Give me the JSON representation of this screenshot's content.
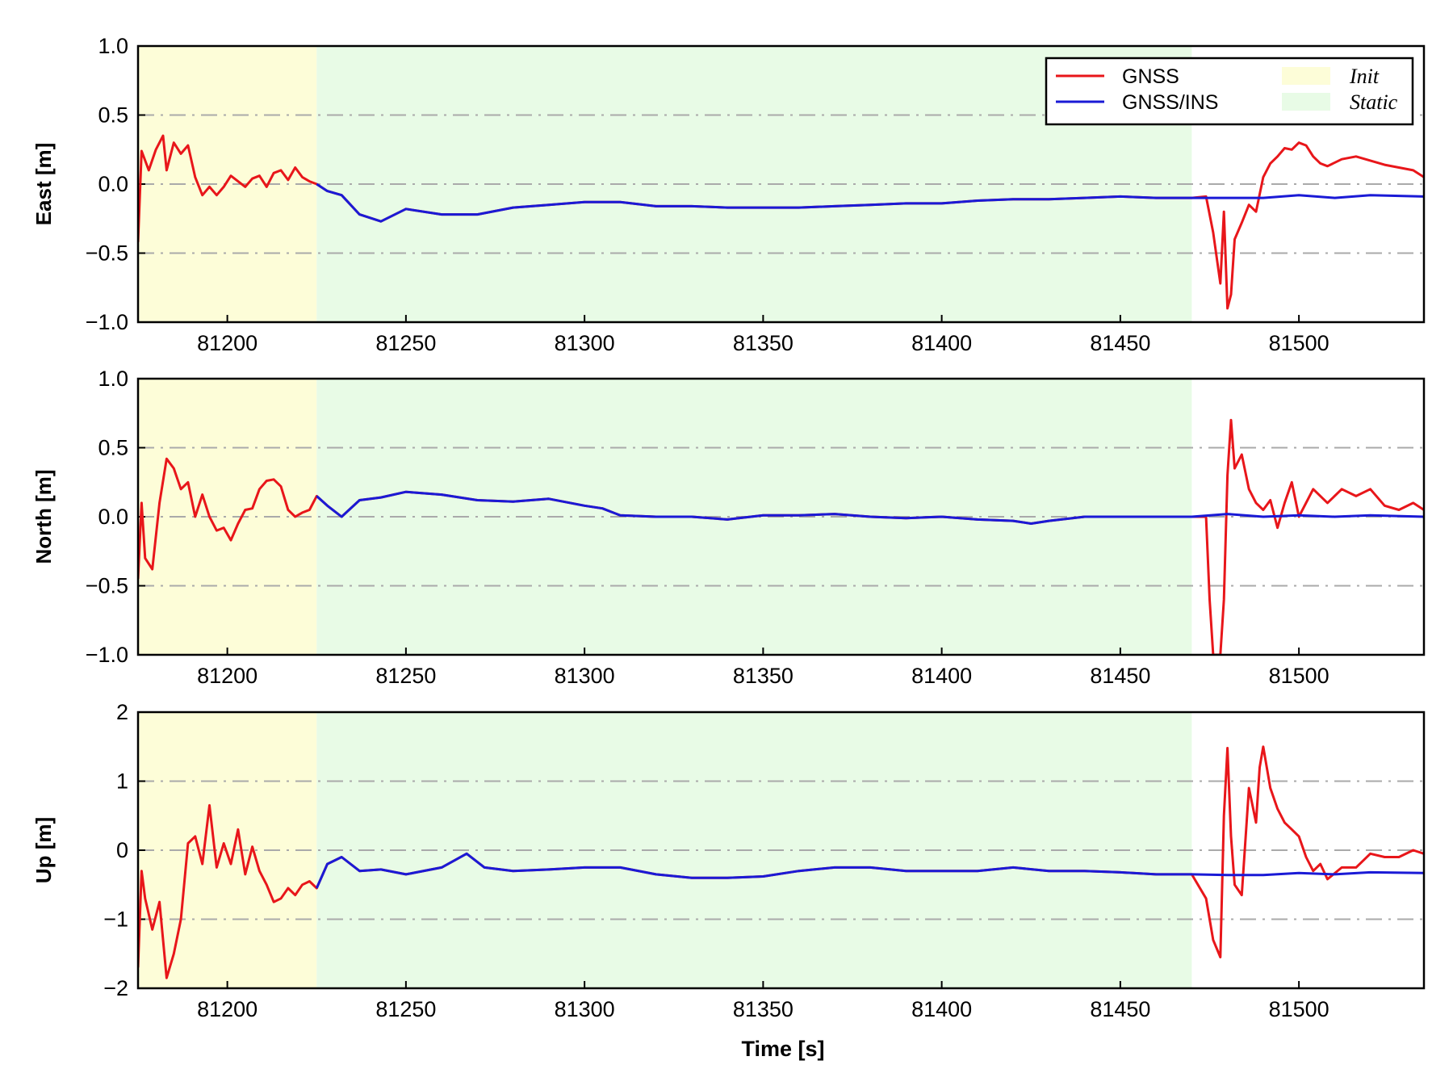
{
  "chart_data": {
    "type": "line",
    "xlabel": "Time [s]",
    "xlim": [
      81175,
      81535
    ],
    "xticks": [
      81200,
      81250,
      81300,
      81350,
      81400,
      81450,
      81500
    ],
    "legend": {
      "placement": "top-right",
      "lines": [
        {
          "label": "GNSS",
          "color": "#e8161a"
        },
        {
          "label": "GNSS/INS",
          "color": "#1a1ad6"
        }
      ],
      "regions": [
        {
          "label": "Init",
          "color": "#fdfdd8"
        },
        {
          "label": "Static",
          "color": "#e8fbe6"
        }
      ]
    },
    "regions": [
      {
        "name": "Init",
        "x": [
          81175,
          81225
        ],
        "color": "#fdfdd8"
      },
      {
        "name": "Static",
        "x": [
          81225,
          81470
        ],
        "color": "#e8fbe6"
      }
    ],
    "grid": {
      "axis": "y",
      "style": "dash-dot",
      "color": "#aaaaaa"
    },
    "panels": [
      {
        "ylabel": "East [m]",
        "ylim": [
          -1.0,
          1.0
        ],
        "yticks": [
          1.0,
          0.5,
          0.0,
          -0.5,
          -1.0
        ],
        "ytick_labels": [
          "1.0",
          "0.5",
          "0.0",
          "−0.5",
          "−1.0"
        ],
        "series": [
          {
            "name": "GNSS",
            "color": "#e8161a",
            "x": [
              81175,
              81176,
              81178,
              81180,
              81182,
              81183,
              81185,
              81187,
              81189,
              81191,
              81193,
              81195,
              81197,
              81199,
              81201,
              81203,
              81205,
              81207,
              81209,
              81211,
              81213,
              81215,
              81217,
              81219,
              81221,
              81223,
              81225,
              81228,
              81232,
              81237,
              81243,
              81250,
              81260,
              81270,
              81280,
              81290,
              81300,
              81310,
              81320,
              81330,
              81340,
              81350,
              81360,
              81370,
              81380,
              81390,
              81400,
              81410,
              81420,
              81430,
              81440,
              81450,
              81460,
              81470,
              81474,
              81476,
              81478,
              81479,
              81480,
              81481,
              81482,
              81484,
              81486,
              81488,
              81490,
              81492,
              81494,
              81496,
              81498,
              81500,
              81502,
              81504,
              81506,
              81508,
              81512,
              81516,
              81520,
              81524,
              81528,
              81532,
              81535
            ],
            "y": [
              -0.42,
              0.24,
              0.1,
              0.25,
              0.35,
              0.1,
              0.3,
              0.22,
              0.28,
              0.05,
              -0.08,
              -0.02,
              -0.08,
              -0.02,
              0.06,
              0.02,
              -0.02,
              0.04,
              0.06,
              -0.02,
              0.08,
              0.1,
              0.03,
              0.12,
              0.05,
              0.02,
              0.0,
              -0.05,
              -0.08,
              -0.22,
              -0.27,
              -0.18,
              -0.22,
              -0.22,
              -0.17,
              -0.15,
              -0.13,
              -0.13,
              -0.16,
              -0.16,
              -0.17,
              -0.17,
              -0.17,
              -0.16,
              -0.15,
              -0.14,
              -0.14,
              -0.12,
              -0.11,
              -0.11,
              -0.1,
              -0.09,
              -0.1,
              -0.1,
              -0.09,
              -0.35,
              -0.72,
              -0.2,
              -0.9,
              -0.8,
              -0.4,
              -0.28,
              -0.15,
              -0.2,
              0.05,
              0.15,
              0.2,
              0.26,
              0.25,
              0.3,
              0.28,
              0.2,
              0.15,
              0.13,
              0.18,
              0.2,
              0.17,
              0.14,
              0.12,
              0.1,
              0.05
            ]
          },
          {
            "name": "GNSS/INS",
            "color": "#1a1ad6",
            "x": [
              81225,
              81228,
              81232,
              81237,
              81243,
              81250,
              81260,
              81270,
              81280,
              81290,
              81300,
              81310,
              81320,
              81330,
              81340,
              81350,
              81360,
              81370,
              81380,
              81390,
              81400,
              81410,
              81420,
              81430,
              81440,
              81450,
              81460,
              81470,
              81480,
              81490,
              81500,
              81510,
              81520,
              81535
            ],
            "y": [
              0.0,
              -0.05,
              -0.08,
              -0.22,
              -0.27,
              -0.18,
              -0.22,
              -0.22,
              -0.17,
              -0.15,
              -0.13,
              -0.13,
              -0.16,
              -0.16,
              -0.17,
              -0.17,
              -0.17,
              -0.16,
              -0.15,
              -0.14,
              -0.14,
              -0.12,
              -0.11,
              -0.11,
              -0.1,
              -0.09,
              -0.1,
              -0.1,
              -0.1,
              -0.1,
              -0.08,
              -0.1,
              -0.08,
              -0.09
            ]
          }
        ]
      },
      {
        "ylabel": "North [m]",
        "ylim": [
          -1.0,
          1.0
        ],
        "yticks": [
          1.0,
          0.5,
          0.0,
          -0.5,
          -1.0
        ],
        "ytick_labels": [
          "1.0",
          "0.5",
          "0.0",
          "−0.5",
          "−1.0"
        ],
        "series": [
          {
            "name": "GNSS",
            "color": "#e8161a",
            "x": [
              81175,
              81176,
              81177,
              81179,
              81181,
              81183,
              81185,
              81187,
              81189,
              81191,
              81193,
              81195,
              81197,
              81199,
              81201,
              81203,
              81205,
              81207,
              81209,
              81211,
              81213,
              81215,
              81217,
              81219,
              81221,
              81223,
              81225,
              81228,
              81232,
              81237,
              81243,
              81250,
              81260,
              81270,
              81280,
              81290,
              81300,
              81305,
              81310,
              81320,
              81330,
              81340,
              81350,
              81360,
              81370,
              81380,
              81390,
              81400,
              81410,
              81420,
              81425,
              81430,
              81440,
              81450,
              81460,
              81470,
              81474,
              81475,
              81476,
              81477,
              81478,
              81479,
              81480,
              81481,
              81482,
              81484,
              81486,
              81488,
              81490,
              81492,
              81494,
              81496,
              81498,
              81500,
              81504,
              81508,
              81512,
              81516,
              81520,
              81524,
              81528,
              81532,
              81535
            ],
            "y": [
              -0.45,
              0.1,
              -0.3,
              -0.38,
              0.1,
              0.42,
              0.35,
              0.2,
              0.25,
              0.0,
              0.16,
              0.0,
              -0.1,
              -0.08,
              -0.17,
              -0.05,
              0.05,
              0.06,
              0.2,
              0.26,
              0.27,
              0.22,
              0.05,
              0.0,
              0.03,
              0.05,
              0.15,
              0.08,
              0.0,
              0.12,
              0.14,
              0.18,
              0.16,
              0.12,
              0.11,
              0.13,
              0.08,
              0.06,
              0.01,
              0.0,
              0.0,
              -0.02,
              0.01,
              0.01,
              0.02,
              0.0,
              -0.01,
              0.0,
              -0.02,
              -0.03,
              -0.05,
              -0.03,
              0.0,
              0.0,
              0.0,
              0.0,
              0.0,
              -0.6,
              -1.0,
              -1.0,
              -1.0,
              -0.6,
              0.3,
              0.7,
              0.35,
              0.45,
              0.2,
              0.1,
              0.05,
              0.12,
              -0.08,
              0.1,
              0.25,
              0.0,
              0.2,
              0.1,
              0.2,
              0.15,
              0.2,
              0.08,
              0.05,
              0.1,
              0.05
            ]
          },
          {
            "name": "GNSS/INS",
            "color": "#1a1ad6",
            "x": [
              81225,
              81228,
              81232,
              81237,
              81243,
              81250,
              81260,
              81270,
              81280,
              81290,
              81300,
              81305,
              81310,
              81320,
              81330,
              81340,
              81350,
              81360,
              81370,
              81380,
              81390,
              81400,
              81410,
              81420,
              81425,
              81430,
              81440,
              81450,
              81460,
              81470,
              81480,
              81490,
              81500,
              81510,
              81520,
              81535
            ],
            "y": [
              0.15,
              0.08,
              0.0,
              0.12,
              0.14,
              0.18,
              0.16,
              0.12,
              0.11,
              0.13,
              0.08,
              0.06,
              0.01,
              0.0,
              0.0,
              -0.02,
              0.01,
              0.01,
              0.02,
              0.0,
              -0.01,
              0.0,
              -0.02,
              -0.03,
              -0.05,
              -0.03,
              0.0,
              0.0,
              0.0,
              0.0,
              0.02,
              0.0,
              0.01,
              0.0,
              0.01,
              0.0
            ]
          }
        ]
      },
      {
        "ylabel": "Up [m]",
        "ylim": [
          -2,
          2
        ],
        "yticks": [
          2,
          1,
          0,
          -1,
          -2
        ],
        "ytick_labels": [
          "2",
          "1",
          "0",
          "−1",
          "−2"
        ],
        "series": [
          {
            "name": "GNSS",
            "color": "#e8161a",
            "x": [
              81175,
              81176,
              81177,
              81179,
              81181,
              81183,
              81185,
              81187,
              81189,
              81191,
              81193,
              81195,
              81197,
              81199,
              81201,
              81203,
              81205,
              81207,
              81209,
              81211,
              81213,
              81215,
              81217,
              81219,
              81221,
              81223,
              81225,
              81228,
              81232,
              81237,
              81243,
              81250,
              81260,
              81267,
              81272,
              81280,
              81290,
              81300,
              81310,
              81320,
              81330,
              81340,
              81350,
              81360,
              81370,
              81380,
              81390,
              81400,
              81410,
              81420,
              81430,
              81440,
              81450,
              81460,
              81470,
              81474,
              81476,
              81478,
              81479,
              81480,
              81481,
              81482,
              81484,
              81486,
              81488,
              81489,
              81490,
              81492,
              81494,
              81496,
              81498,
              81500,
              81502,
              81504,
              81506,
              81508,
              81512,
              81516,
              81520,
              81524,
              81528,
              81532,
              81535
            ],
            "y": [
              -1.7,
              -0.3,
              -0.7,
              -1.15,
              -0.75,
              -1.85,
              -1.5,
              -1.0,
              0.1,
              0.2,
              -0.2,
              0.65,
              -0.25,
              0.1,
              -0.2,
              0.3,
              -0.35,
              0.05,
              -0.3,
              -0.5,
              -0.75,
              -0.7,
              -0.55,
              -0.65,
              -0.5,
              -0.45,
              -0.55,
              -0.2,
              -0.1,
              -0.3,
              -0.28,
              -0.35,
              -0.25,
              -0.05,
              -0.25,
              -0.3,
              -0.28,
              -0.25,
              -0.25,
              -0.35,
              -0.4,
              -0.4,
              -0.38,
              -0.3,
              -0.25,
              -0.25,
              -0.3,
              -0.3,
              -0.3,
              -0.25,
              -0.3,
              -0.3,
              -0.32,
              -0.35,
              -0.35,
              -0.7,
              -1.3,
              -1.55,
              0.5,
              1.48,
              0.2,
              -0.5,
              -0.65,
              0.9,
              0.4,
              1.2,
              1.5,
              0.9,
              0.6,
              0.4,
              0.3,
              0.2,
              -0.1,
              -0.3,
              -0.2,
              -0.42,
              -0.25,
              -0.25,
              -0.05,
              -0.1,
              -0.1,
              0.0,
              -0.05
            ]
          },
          {
            "name": "GNSS/INS",
            "color": "#1a1ad6",
            "x": [
              81225,
              81228,
              81232,
              81237,
              81243,
              81250,
              81260,
              81267,
              81272,
              81280,
              81290,
              81300,
              81310,
              81320,
              81330,
              81340,
              81350,
              81360,
              81370,
              81380,
              81390,
              81400,
              81410,
              81420,
              81430,
              81440,
              81450,
              81460,
              81470,
              81480,
              81490,
              81500,
              81510,
              81520,
              81535
            ],
            "y": [
              -0.55,
              -0.2,
              -0.1,
              -0.3,
              -0.28,
              -0.35,
              -0.25,
              -0.05,
              -0.25,
              -0.3,
              -0.28,
              -0.25,
              -0.25,
              -0.35,
              -0.4,
              -0.4,
              -0.38,
              -0.3,
              -0.25,
              -0.25,
              -0.3,
              -0.3,
              -0.3,
              -0.25,
              -0.3,
              -0.3,
              -0.32,
              -0.35,
              -0.35,
              -0.36,
              -0.36,
              -0.33,
              -0.35,
              -0.32,
              -0.33
            ]
          }
        ]
      }
    ]
  }
}
